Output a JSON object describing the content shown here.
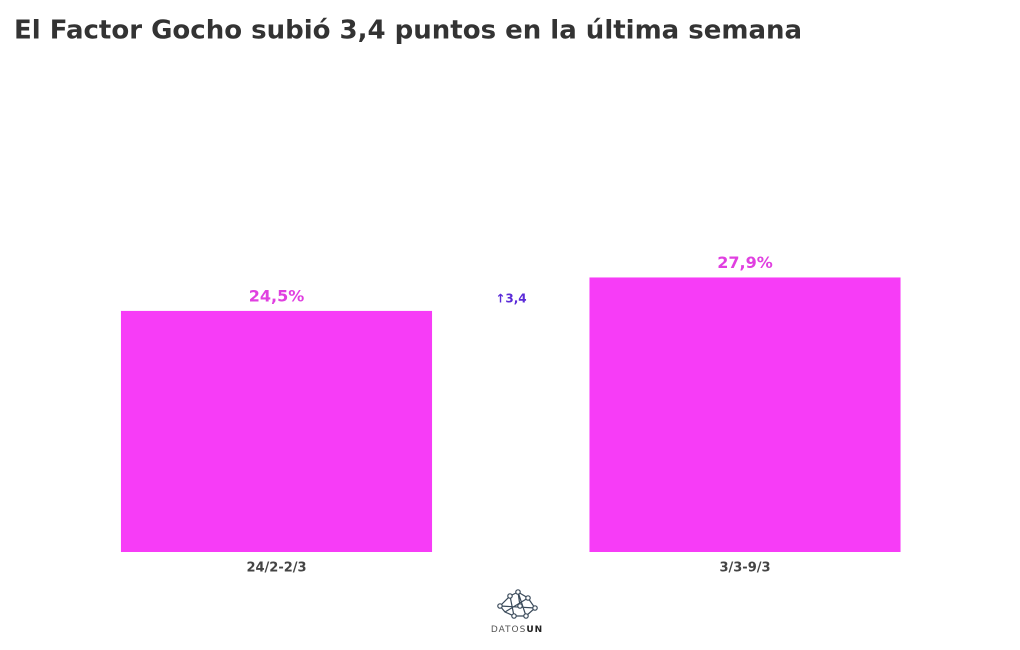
{
  "chart_data": {
    "type": "bar",
    "title": "El Factor Gocho subió 3,4 puntos en la última semana",
    "categories": [
      "24/2-2/3",
      "3/3-9/3"
    ],
    "values": [
      24.5,
      27.9
    ],
    "value_labels": [
      "24,5%",
      "27,9%"
    ],
    "color": "#f73cf7",
    "ylim": [
      0,
      50
    ],
    "annotation": "↑3,4"
  },
  "logo": {
    "text": [
      "DATOS",
      "UN"
    ]
  }
}
